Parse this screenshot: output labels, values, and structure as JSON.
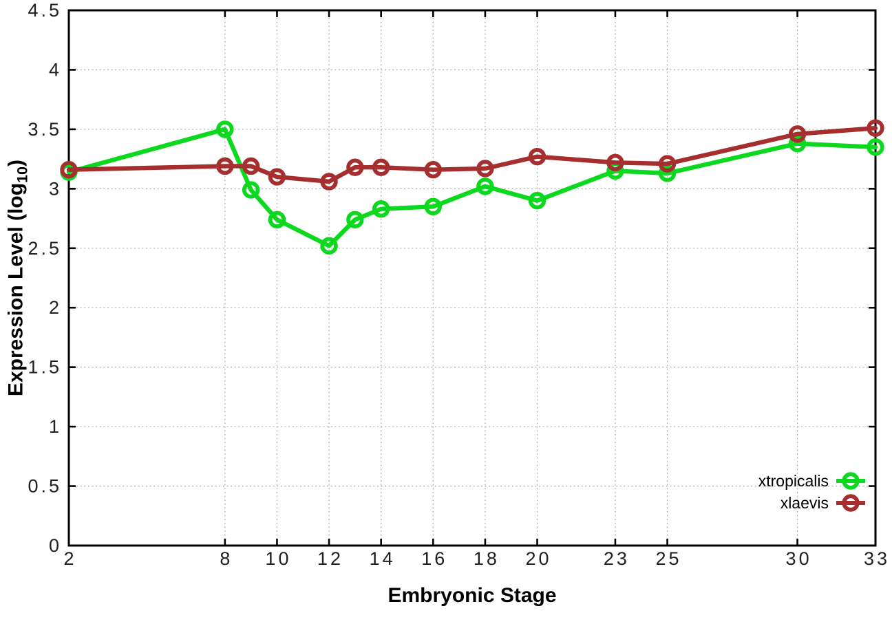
{
  "chart_data": {
    "type": "line",
    "title": "",
    "xlabel": "Embryonic Stage",
    "ylabel": "Expression Level (log10)",
    "ylabel_parts": {
      "base": "Expression Level (log",
      "sub": "10",
      "close": ")"
    },
    "xlim": [
      2,
      33
    ],
    "ylim": [
      0,
      4.5
    ],
    "grid": true,
    "grid_style": "dotted",
    "legend_position": "inside bottom-right",
    "border_color": "#000000",
    "tick_label_color": "#202020",
    "x": [
      2,
      8,
      9,
      10,
      12,
      13,
      14,
      16,
      18,
      20,
      23,
      25,
      30,
      33
    ],
    "xticks": [
      {
        "v": 2,
        "label": "2"
      },
      {
        "v": 8,
        "label": "8"
      },
      {
        "v": 10,
        "label": "10"
      },
      {
        "v": 12,
        "label": "12"
      },
      {
        "v": 14,
        "label": "14"
      },
      {
        "v": 16,
        "label": "16"
      },
      {
        "v": 18,
        "label": "18"
      },
      {
        "v": 20,
        "label": "20"
      },
      {
        "v": 23,
        "label": "23"
      },
      {
        "v": 25,
        "label": "25"
      },
      {
        "v": 30,
        "label": "30"
      },
      {
        "v": 33,
        "label": "33"
      }
    ],
    "yticks": [
      {
        "v": 0,
        "label": "0"
      },
      {
        "v": 0.5,
        "label": "0.5"
      },
      {
        "v": 1,
        "label": "1"
      },
      {
        "v": 1.5,
        "label": "1.5"
      },
      {
        "v": 2,
        "label": "2"
      },
      {
        "v": 2.5,
        "label": "2.5"
      },
      {
        "v": 3,
        "label": "3"
      },
      {
        "v": 3.5,
        "label": "3.5"
      },
      {
        "v": 4,
        "label": "4"
      },
      {
        "v": 4.5,
        "label": "4.5"
      }
    ],
    "series": [
      {
        "name": "xtropicalis",
        "color": "#0cd81f",
        "marker": "open-circle",
        "values": [
          3.14,
          3.5,
          2.99,
          2.74,
          2.52,
          2.74,
          2.83,
          2.85,
          3.02,
          2.9,
          3.15,
          3.13,
          3.38,
          3.35
        ]
      },
      {
        "name": "xlaevis",
        "color": "#a52f2f",
        "marker": "open-circle",
        "values": [
          3.16,
          3.19,
          3.19,
          3.1,
          3.06,
          3.18,
          3.18,
          3.16,
          3.17,
          3.27,
          3.22,
          3.21,
          3.46,
          3.51
        ]
      }
    ]
  }
}
